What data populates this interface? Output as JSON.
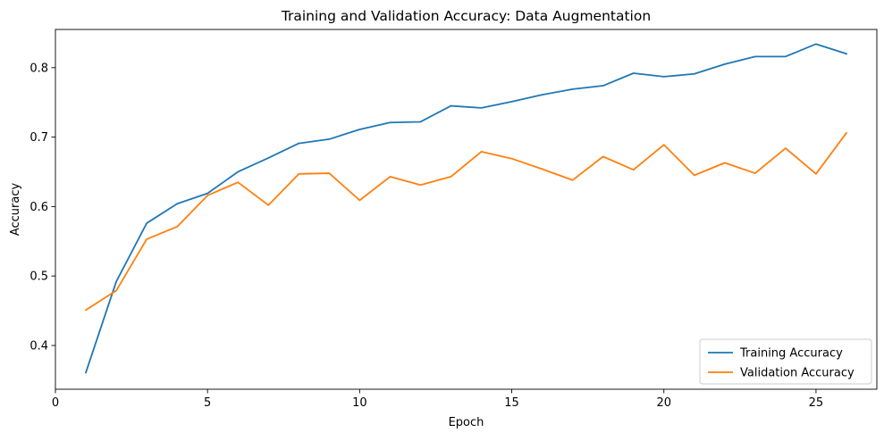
{
  "chart_data": {
    "type": "line",
    "title": "Training and Validation Accuracy: Data Augmentation",
    "xlabel": "Epoch",
    "ylabel": "Accuracy",
    "xlim": [
      0.0,
      27.0
    ],
    "ylim": [
      0.337,
      0.855
    ],
    "xticks": [
      0,
      5,
      10,
      15,
      20,
      25
    ],
    "yticks": [
      0.4,
      0.5,
      0.6,
      0.7,
      0.8
    ],
    "grid": false,
    "legend_position": "lower-right",
    "x": [
      1,
      2,
      3,
      4,
      5,
      6,
      7,
      8,
      9,
      10,
      11,
      12,
      13,
      14,
      15,
      16,
      17,
      18,
      19,
      20,
      21,
      22,
      23,
      24,
      25,
      26
    ],
    "series": [
      {
        "name": "Training Accuracy",
        "color": "#1f77b4",
        "values": [
          0.361,
          0.492,
          0.576,
          0.604,
          0.619,
          0.65,
          0.67,
          0.691,
          0.697,
          0.711,
          0.721,
          0.722,
          0.745,
          0.742,
          0.751,
          0.761,
          0.769,
          0.774,
          0.792,
          0.787,
          0.791,
          0.805,
          0.816,
          0.816,
          0.834,
          0.82
        ]
      },
      {
        "name": "Validation Accuracy",
        "color": "#ff7f0e",
        "values": [
          0.451,
          0.479,
          0.553,
          0.571,
          0.616,
          0.635,
          0.602,
          0.647,
          0.648,
          0.609,
          0.643,
          0.631,
          0.643,
          0.679,
          0.669,
          0.654,
          0.638,
          0.672,
          0.653,
          0.689,
          0.645,
          0.663,
          0.648,
          0.684,
          0.647,
          0.706
        ]
      }
    ]
  }
}
